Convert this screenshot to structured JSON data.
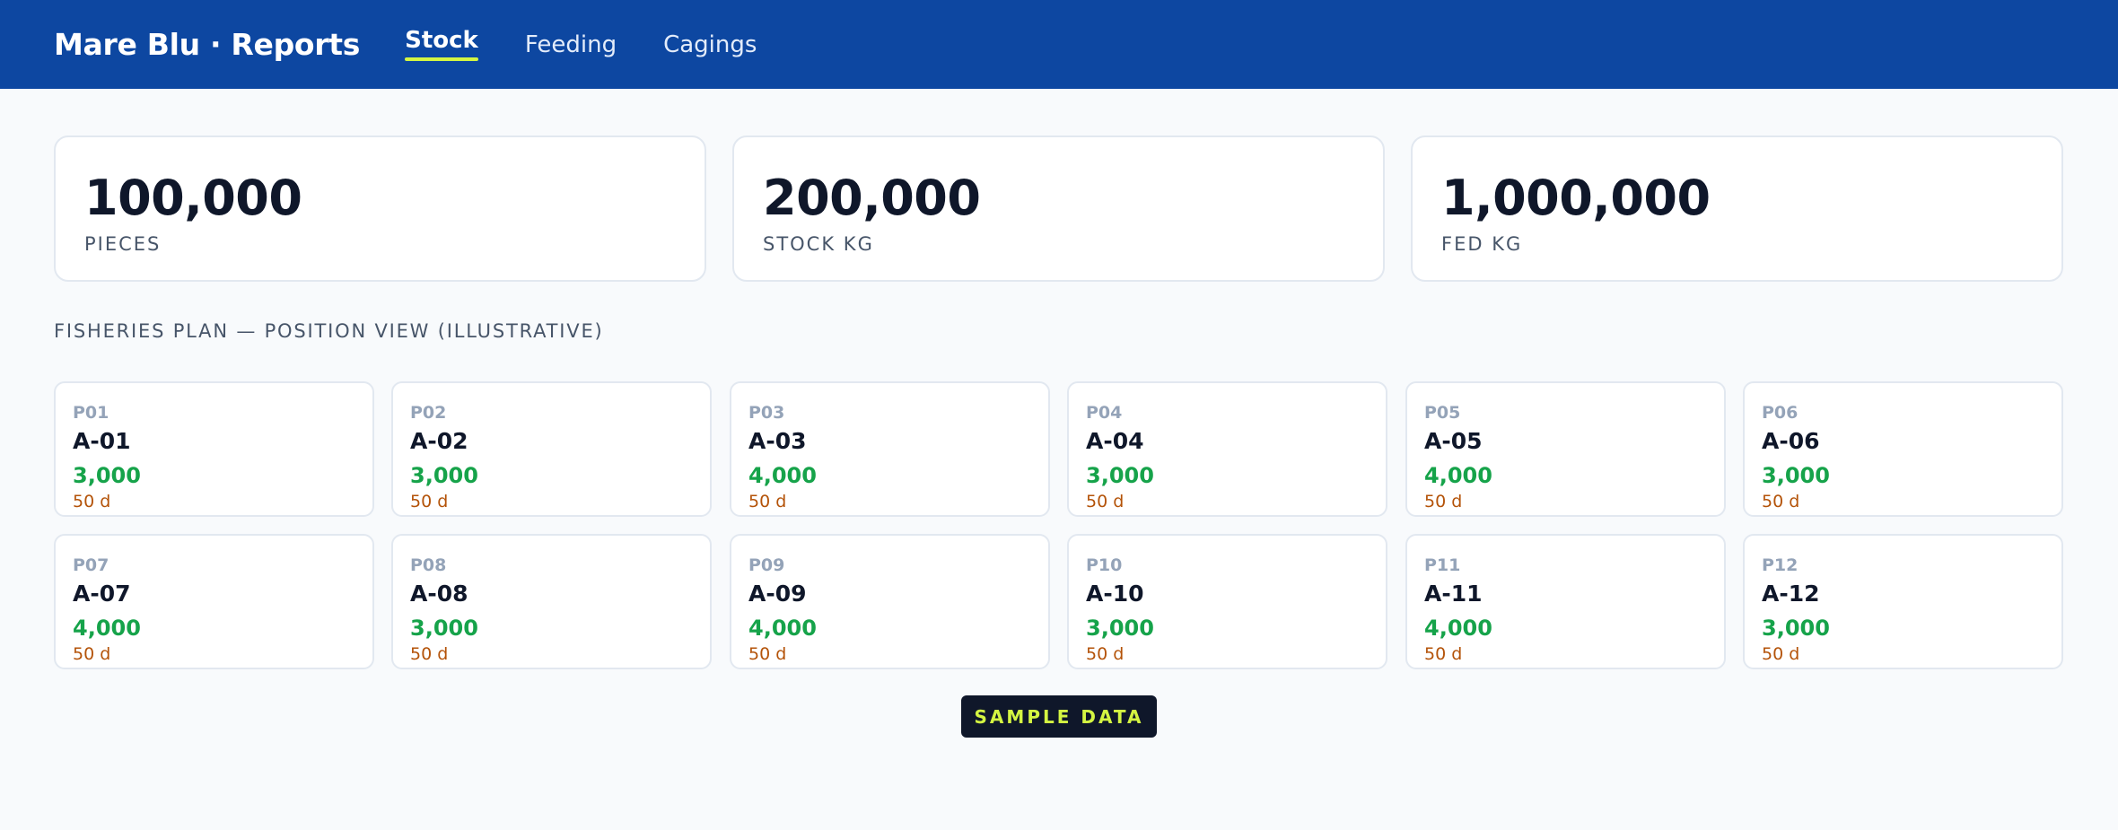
{
  "header": {
    "brand": "Mare Blu · Reports",
    "tabs": [
      {
        "label": "Stock",
        "active": true
      },
      {
        "label": "Feeding",
        "active": false
      },
      {
        "label": "Cagings",
        "active": false
      }
    ]
  },
  "kpis": [
    {
      "value": "100,000",
      "label": "PIECES"
    },
    {
      "value": "200,000",
      "label": "STOCK KG"
    },
    {
      "value": "1,000,000",
      "label": "FED KG"
    }
  ],
  "section_title": "FISHERIES PLAN — POSITION VIEW (ILLUSTRATIVE)",
  "positions": [
    {
      "pos": "P01",
      "code": "A-01",
      "count": "3,000",
      "days": "50 d"
    },
    {
      "pos": "P02",
      "code": "A-02",
      "count": "3,000",
      "days": "50 d"
    },
    {
      "pos": "P03",
      "code": "A-03",
      "count": "4,000",
      "days": "50 d"
    },
    {
      "pos": "P04",
      "code": "A-04",
      "count": "3,000",
      "days": "50 d"
    },
    {
      "pos": "P05",
      "code": "A-05",
      "count": "4,000",
      "days": "50 d"
    },
    {
      "pos": "P06",
      "code": "A-06",
      "count": "3,000",
      "days": "50 d"
    },
    {
      "pos": "P07",
      "code": "A-07",
      "count": "4,000",
      "days": "50 d"
    },
    {
      "pos": "P08",
      "code": "A-08",
      "count": "3,000",
      "days": "50 d"
    },
    {
      "pos": "P09",
      "code": "A-09",
      "count": "4,000",
      "days": "50 d"
    },
    {
      "pos": "P10",
      "code": "A-10",
      "count": "3,000",
      "days": "50 d"
    },
    {
      "pos": "P11",
      "code": "A-11",
      "count": "4,000",
      "days": "50 d"
    },
    {
      "pos": "P12",
      "code": "A-12",
      "count": "3,000",
      "days": "50 d"
    }
  ],
  "badge": "SAMPLE DATA",
  "colors": {
    "header_bg": "#0d47a1",
    "active_underline": "#d4f542",
    "count_green": "#16a34a",
    "days_amber": "#b45309",
    "badge_bg": "#0f172a"
  }
}
